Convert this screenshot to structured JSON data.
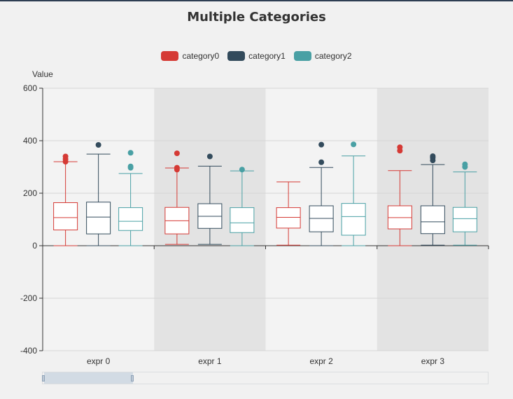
{
  "chart_data": {
    "type": "boxplot",
    "title": "Multiple Categories",
    "ylabel": "Value",
    "ylim": [
      -400,
      600
    ],
    "y_ticks": [
      -400,
      -200,
      0,
      200,
      400,
      600
    ],
    "grid": true,
    "legend_position": "top-center",
    "categories": [
      "expr 0",
      "expr 1",
      "expr 2",
      "expr 3"
    ],
    "series": [
      {
        "name": "category0",
        "color": "#d53a35",
        "boxes": [
          {
            "min": 0,
            "q1": 60,
            "median": 107,
            "q3": 164,
            "max": 320,
            "outliers": [
              320,
              330,
              340
            ]
          },
          {
            "min": 5,
            "q1": 45,
            "median": 95,
            "q3": 146,
            "max": 296,
            "outliers": [
              290,
              297,
              352
            ]
          },
          {
            "min": 2,
            "q1": 67,
            "median": 108,
            "q3": 145,
            "max": 243,
            "outliers": []
          },
          {
            "min": 0,
            "q1": 64,
            "median": 107,
            "q3": 152,
            "max": 286,
            "outliers": [
              362,
              375
            ]
          }
        ]
      },
      {
        "name": "category1",
        "color": "#334b5c",
        "boxes": [
          {
            "min": 0,
            "q1": 45,
            "median": 109,
            "q3": 166,
            "max": 349,
            "outliers": [
              384
            ]
          },
          {
            "min": 5,
            "q1": 66,
            "median": 112,
            "q3": 160,
            "max": 303,
            "outliers": [
              340
            ]
          },
          {
            "min": 0,
            "q1": 53,
            "median": 104,
            "q3": 152,
            "max": 298,
            "outliers": [
              318,
              385
            ]
          },
          {
            "min": 2,
            "q1": 46,
            "median": 91,
            "q3": 152,
            "max": 309,
            "outliers": [
              325,
              335,
              341
            ]
          }
        ]
      },
      {
        "name": "category2",
        "color": "#49a0a4",
        "boxes": [
          {
            "min": 0,
            "q1": 58,
            "median": 93,
            "q3": 145,
            "max": 275,
            "outliers": [
              297,
              302,
              354
            ]
          },
          {
            "min": 0,
            "q1": 50,
            "median": 87,
            "q3": 145,
            "max": 285,
            "outliers": [
              290
            ]
          },
          {
            "min": 0,
            "q1": 40,
            "median": 111,
            "q3": 161,
            "max": 342,
            "outliers": [
              386
            ]
          },
          {
            "min": 2,
            "q1": 53,
            "median": 103,
            "q3": 146,
            "max": 281,
            "outliers": [
              300,
              310
            ]
          }
        ]
      }
    ],
    "band_colors": [
      "#f3f3f3",
      "#e3e3e3"
    ]
  },
  "data_zoom": {
    "start_fraction": 0,
    "end_fraction": 0.2
  }
}
